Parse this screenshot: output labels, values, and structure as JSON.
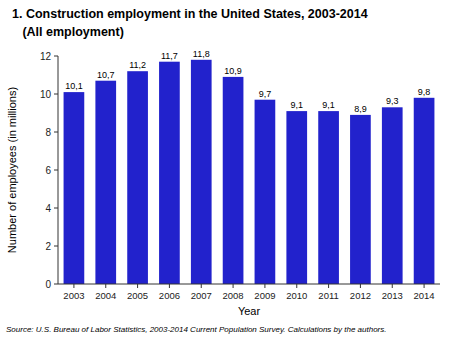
{
  "chart_data": {
    "type": "bar",
    "title": "1. Construction employment in the United States, 2003-2014",
    "subtitle": "   (All employment)",
    "x_label": "Year",
    "y_label": "Number of employees (in millions)",
    "annotations": [
      "Source: U.S. Bureau of Labor Statistics, 2003-2014 Current Population Survey. Calculations by the authors."
    ],
    "categories": [
      "2003",
      "2004",
      "2005",
      "2006",
      "2007",
      "2008",
      "2009",
      "2010",
      "2011",
      "2012",
      "2013",
      "2014"
    ],
    "values": [
      10.1,
      10.7,
      11.2,
      11.7,
      11.8,
      10.9,
      9.7,
      9.1,
      9.1,
      8.9,
      9.3,
      9.8
    ],
    "value_labels": [
      "10,1",
      "10,7",
      "11,2",
      "11,7",
      "11,8",
      "10,9",
      "9,7",
      "9,1",
      "9,1",
      "8,9",
      "9,3",
      "9,8"
    ],
    "data_labels": true,
    "color": "#2222CC",
    "ylim": [
      0,
      12
    ],
    "yticks": [
      0,
      2,
      4,
      6,
      8,
      10,
      12
    ],
    "grid": false
  }
}
